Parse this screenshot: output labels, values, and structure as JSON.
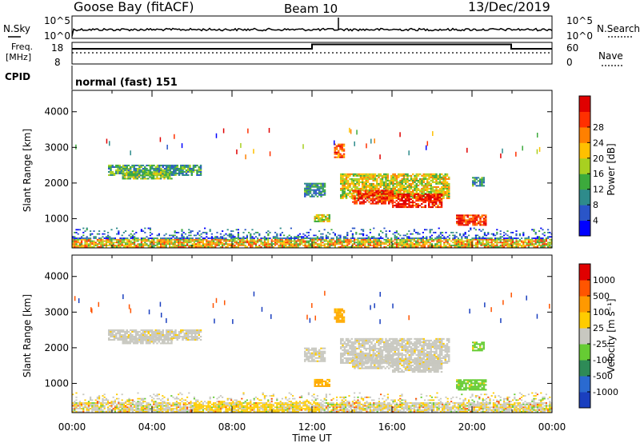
{
  "header": {
    "station": "Goose Bay (fitACF)",
    "beam": "Beam 10",
    "date": "13/Dec/2019"
  },
  "top_panel": {
    "left_label": "N.Sky",
    "right_label": "N.Search",
    "left_ticks": [
      "10^5",
      "10^0"
    ],
    "right_ticks": [
      "10^5",
      "10^0"
    ]
  },
  "freq_panel": {
    "left_label_line1": "Freq.",
    "left_label_line2": "[MHz]",
    "right_label": "Nave",
    "left_ticks": [
      "18",
      "8"
    ],
    "right_ticks": [
      "60",
      "0"
    ],
    "step_fraction": [
      {
        "t": 0.0,
        "freq": 0.78
      },
      {
        "t": 0.5,
        "freq": 0.78
      },
      {
        "t": 0.5,
        "freq": 0.98
      },
      {
        "t": 0.915,
        "freq": 0.98
      },
      {
        "t": 0.915,
        "freq": 0.78
      },
      {
        "t": 1.0,
        "freq": 0.78
      }
    ]
  },
  "cpid": {
    "label": "CPID",
    "mode": "normal (fast) 151"
  },
  "chart_data": [
    {
      "type": "heatmap",
      "name": "power",
      "ylabel": "Slant Range [km]",
      "xlabel": "Time UT",
      "ylim": [
        180,
        4600
      ],
      "xlim": [
        0,
        24
      ],
      "x_ticks": [
        "00:00",
        "04:00",
        "08:00",
        "12:00",
        "16:00",
        "20:00",
        "00:00"
      ],
      "y_ticks": [
        1000,
        2000,
        3000,
        4000
      ],
      "colorbar": {
        "label": "Power [dB]",
        "ticks": [
          "4",
          "8",
          "12",
          "16",
          "20",
          "24",
          "28"
        ],
        "colors": [
          "#0000ff",
          "#2a55c8",
          "#2e8b8b",
          "#3caa3c",
          "#a8d020",
          "#ffc000",
          "#ff8000",
          "#ff3000",
          "#e00000"
        ]
      }
    },
    {
      "type": "heatmap",
      "name": "velocity",
      "ylabel": "Slant Range [km]",
      "xlabel": "Time UT",
      "ylim": [
        180,
        4600
      ],
      "xlim": [
        0,
        24
      ],
      "x_ticks": [
        "00:00",
        "04:00",
        "08:00",
        "12:00",
        "16:00",
        "20:00",
        "00:00"
      ],
      "y_ticks": [
        1000,
        2000,
        3000,
        4000
      ],
      "colorbar": {
        "label": "Velocity [m s⁻¹]",
        "ticks": [
          "1000",
          "500",
          "100",
          "25",
          "-25",
          "-100",
          "-500",
          "-1000"
        ],
        "colors": [
          "#1a3fbf",
          "#2a6ad0",
          "#2e8b57",
          "#66cc33",
          "#c8c8c0",
          "#ffcc00",
          "#ff9900",
          "#ff5500",
          "#e00000"
        ]
      }
    }
  ],
  "echo_regions": [
    {
      "t0": 1.8,
      "t1": 6.4,
      "r0": 2200,
      "r1": 2500,
      "power_level": 0.35,
      "vel": "gray"
    },
    {
      "t0": 2.5,
      "t1": 5.0,
      "r0": 2100,
      "r1": 2300,
      "power_level": 0.45,
      "vel": "gray"
    },
    {
      "t0": 13.1,
      "t1": 13.6,
      "r0": 2700,
      "r1": 3100,
      "power_level": 0.75,
      "vel": "orange"
    },
    {
      "t0": 13.4,
      "t1": 18.8,
      "r0": 1550,
      "r1": 2250,
      "power_level": 0.55,
      "vel": "gray"
    },
    {
      "t0": 14.0,
      "t1": 16.0,
      "r0": 1400,
      "r1": 1800,
      "power_level": 0.85,
      "vel": "gray"
    },
    {
      "t0": 16.0,
      "t1": 18.5,
      "r0": 1300,
      "r1": 1700,
      "power_level": 0.9,
      "vel": "gray"
    },
    {
      "t0": 19.2,
      "t1": 20.7,
      "r0": 800,
      "r1": 1100,
      "power_level": 0.85,
      "vel": "green"
    },
    {
      "t0": 12.1,
      "t1": 12.9,
      "r0": 900,
      "r1": 1100,
      "power_level": 0.55,
      "vel": "orange"
    },
    {
      "t0": 11.6,
      "t1": 12.6,
      "r0": 1600,
      "r1": 2000,
      "power_level": 0.3,
      "vel": "gray"
    },
    {
      "t0": 20.0,
      "t1": 20.6,
      "r0": 1900,
      "r1": 2150,
      "power_level": 0.3,
      "vel": "green"
    }
  ]
}
